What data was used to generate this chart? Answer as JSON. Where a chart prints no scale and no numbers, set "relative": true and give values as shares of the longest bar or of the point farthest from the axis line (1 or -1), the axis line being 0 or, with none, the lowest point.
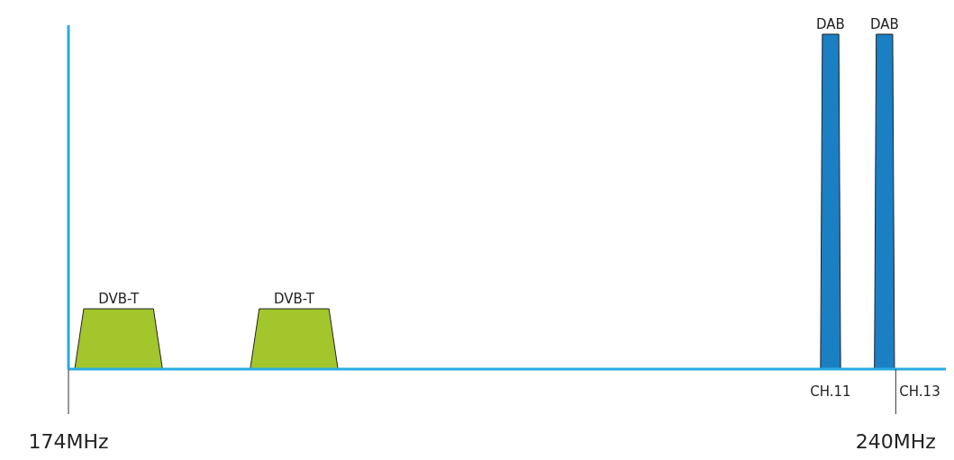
{
  "chart_data": {
    "type": "bar",
    "xlim": [
      174,
      244
    ],
    "xticks": [
      {
        "value": 174,
        "label": "174MHz"
      },
      {
        "value": 240,
        "label": "240MHz"
      }
    ],
    "series": [
      {
        "name": "DVB-T",
        "color": "#a2c62b",
        "x": [
          178,
          192
        ],
        "values": [
          0.18,
          0.18
        ]
      },
      {
        "name": "DAB",
        "color": "#1b7fc4",
        "x": [
          234.8,
          239.1
        ],
        "values": [
          1,
          1
        ]
      }
    ],
    "annotations": [
      {
        "text": "CH.11",
        "x": 234.8,
        "y": 0
      },
      {
        "text": "CH.13",
        "x": 240,
        "y": 0
      }
    ],
    "relative": true
  }
}
